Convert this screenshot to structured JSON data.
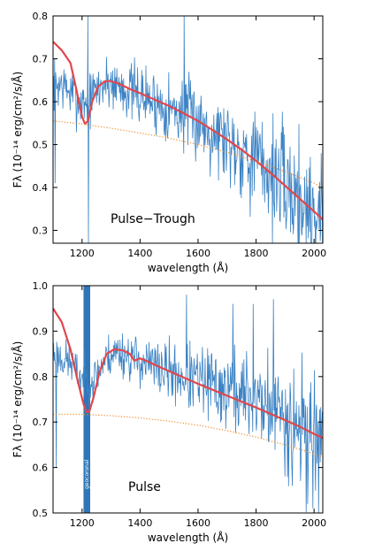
{
  "chart_data": [
    {
      "type": "line",
      "annotation": "Pulse−Trough",
      "xlabel": "wavelength (Å)",
      "ylabel": "Fλ (10⁻¹⁴ erg/cm²/s/Å)",
      "xlim": [
        1100,
        2030
      ],
      "ylim": [
        0.27,
        0.8
      ],
      "xticks": [
        1200,
        1400,
        1600,
        1800,
        2000
      ],
      "xtick_labels": [
        "1200",
        "1400",
        "1600",
        "1800",
        "2000"
      ],
      "yticks": [
        0.3,
        0.4,
        0.5,
        0.6,
        0.7,
        0.8
      ],
      "ytick_labels": [
        "0.3",
        "0.4",
        "0.5",
        "0.6",
        "0.7",
        "0.8"
      ],
      "colors": {
        "observed": "#3b82c4",
        "model": "#e0474c",
        "continuum": "#f28e2b"
      },
      "series": [
        {
          "style": "noisy-line",
          "color": "#3b82c4",
          "noise": 0.03,
          "seed": 7,
          "noise_growth": 1.8,
          "x": [
            1100,
            1130,
            1160,
            1190,
            1210,
            1220,
            1240,
            1270,
            1300,
            1350,
            1400,
            1450,
            1500,
            1550,
            1600,
            1650,
            1700,
            1750,
            1800,
            1850,
            1900,
            1950,
            2000,
            2030
          ],
          "y": [
            0.64,
            0.64,
            0.62,
            0.6,
            0.6,
            0.6,
            0.62,
            0.64,
            0.645,
            0.63,
            0.615,
            0.6,
            0.585,
            0.57,
            0.555,
            0.535,
            0.515,
            0.49,
            0.465,
            0.435,
            0.405,
            0.375,
            0.345,
            0.33
          ],
          "spikes": [
            {
              "x": 1220,
              "y": 0.8
            },
            {
              "x": 1222,
              "y": 0.27
            },
            {
              "x": 1552,
              "y": 0.8
            },
            {
              "x": 1556,
              "y": 0.64
            },
            {
              "x": 1107,
              "y": 0.41
            }
          ]
        },
        {
          "style": "smooth",
          "color": "#e0474c",
          "x": [
            1100,
            1130,
            1160,
            1180,
            1200,
            1210,
            1220,
            1235,
            1255,
            1280,
            1300,
            1330,
            1370,
            1400,
            1450,
            1500,
            1550,
            1600,
            1650,
            1700,
            1750,
            1800,
            1850,
            1900,
            1950,
            2000,
            2030
          ],
          "y": [
            0.74,
            0.72,
            0.69,
            0.63,
            0.565,
            0.548,
            0.555,
            0.6,
            0.635,
            0.648,
            0.648,
            0.641,
            0.628,
            0.62,
            0.605,
            0.59,
            0.573,
            0.555,
            0.534,
            0.512,
            0.488,
            0.462,
            0.434,
            0.404,
            0.374,
            0.344,
            0.325
          ]
        },
        {
          "style": "dotted",
          "color": "#f28e2b",
          "x": [
            1100,
            1200,
            1300,
            1400,
            1500,
            1600,
            1700,
            1800,
            1900,
            2000,
            2030
          ],
          "y": [
            0.555,
            0.548,
            0.538,
            0.527,
            0.515,
            0.5,
            0.482,
            0.461,
            0.437,
            0.41,
            0.4
          ]
        }
      ]
    },
    {
      "type": "line",
      "annotation": "Pulse",
      "band_label": "geocoronal",
      "band": {
        "x0": 1205,
        "x1": 1228,
        "color": "#2e76b8"
      },
      "xlabel": "wavelength (Å)",
      "ylabel": "Fλ (10⁻¹⁴ erg/cm²/s/Å)",
      "xlim": [
        1100,
        2030
      ],
      "ylim": [
        0.5,
        1.0
      ],
      "xticks": [
        1200,
        1400,
        1600,
        1800,
        2000
      ],
      "xtick_labels": [
        "1200",
        "1400",
        "1600",
        "1800",
        "2000"
      ],
      "yticks": [
        0.5,
        0.6,
        0.7,
        0.8,
        0.9,
        1.0
      ],
      "ytick_labels": [
        "0.5",
        "0.6",
        "0.7",
        "0.8",
        "0.9",
        "1.0"
      ],
      "colors": {
        "observed": "#3b82c4",
        "model": "#e0474c",
        "continuum": "#f28e2b"
      },
      "series": [
        {
          "style": "noisy-line",
          "color": "#3b82c4",
          "noise": 0.022,
          "seed": 23,
          "noise_growth": 2.6,
          "x": [
            1100,
            1130,
            1160,
            1190,
            1240,
            1270,
            1300,
            1330,
            1360,
            1400,
            1450,
            1500,
            1550,
            1600,
            1650,
            1700,
            1750,
            1800,
            1850,
            1900,
            1950,
            2000,
            2030
          ],
          "y": [
            0.85,
            0.84,
            0.83,
            0.8,
            0.79,
            0.83,
            0.85,
            0.855,
            0.845,
            0.835,
            0.82,
            0.81,
            0.8,
            0.79,
            0.78,
            0.77,
            0.76,
            0.75,
            0.735,
            0.715,
            0.695,
            0.675,
            0.665
          ],
          "spikes": [
            {
              "x": 1111,
              "y": 0.6
            },
            {
              "x": 1560,
              "y": 0.98
            },
            {
              "x": 1720,
              "y": 0.96
            },
            {
              "x": 1790,
              "y": 0.96
            },
            {
              "x": 1860,
              "y": 0.97
            },
            {
              "x": 1925,
              "y": 0.56
            },
            {
              "x": 1978,
              "y": 0.52
            },
            {
              "x": 1996,
              "y": 0.51
            }
          ]
        },
        {
          "style": "smooth",
          "color": "#e0474c",
          "x": [
            1100,
            1130,
            1160,
            1185,
            1205,
            1215,
            1225,
            1240,
            1260,
            1285,
            1310,
            1340,
            1365,
            1380,
            1400,
            1420,
            1450,
            1500,
            1550,
            1600,
            1650,
            1700,
            1750,
            1800,
            1850,
            1900,
            1950,
            2000,
            2030
          ],
          "y": [
            0.95,
            0.92,
            0.86,
            0.79,
            0.74,
            0.722,
            0.723,
            0.755,
            0.81,
            0.85,
            0.86,
            0.858,
            0.85,
            0.835,
            0.84,
            0.835,
            0.826,
            0.812,
            0.798,
            0.784,
            0.771,
            0.758,
            0.745,
            0.732,
            0.718,
            0.704,
            0.69,
            0.674,
            0.665
          ]
        },
        {
          "style": "dotted",
          "color": "#f28e2b",
          "x": [
            1100,
            1200,
            1300,
            1400,
            1500,
            1600,
            1700,
            1800,
            1900,
            2000,
            2030
          ],
          "y": [
            0.717,
            0.717,
            0.714,
            0.709,
            0.702,
            0.693,
            0.681,
            0.667,
            0.65,
            0.63,
            0.623
          ]
        }
      ]
    }
  ]
}
